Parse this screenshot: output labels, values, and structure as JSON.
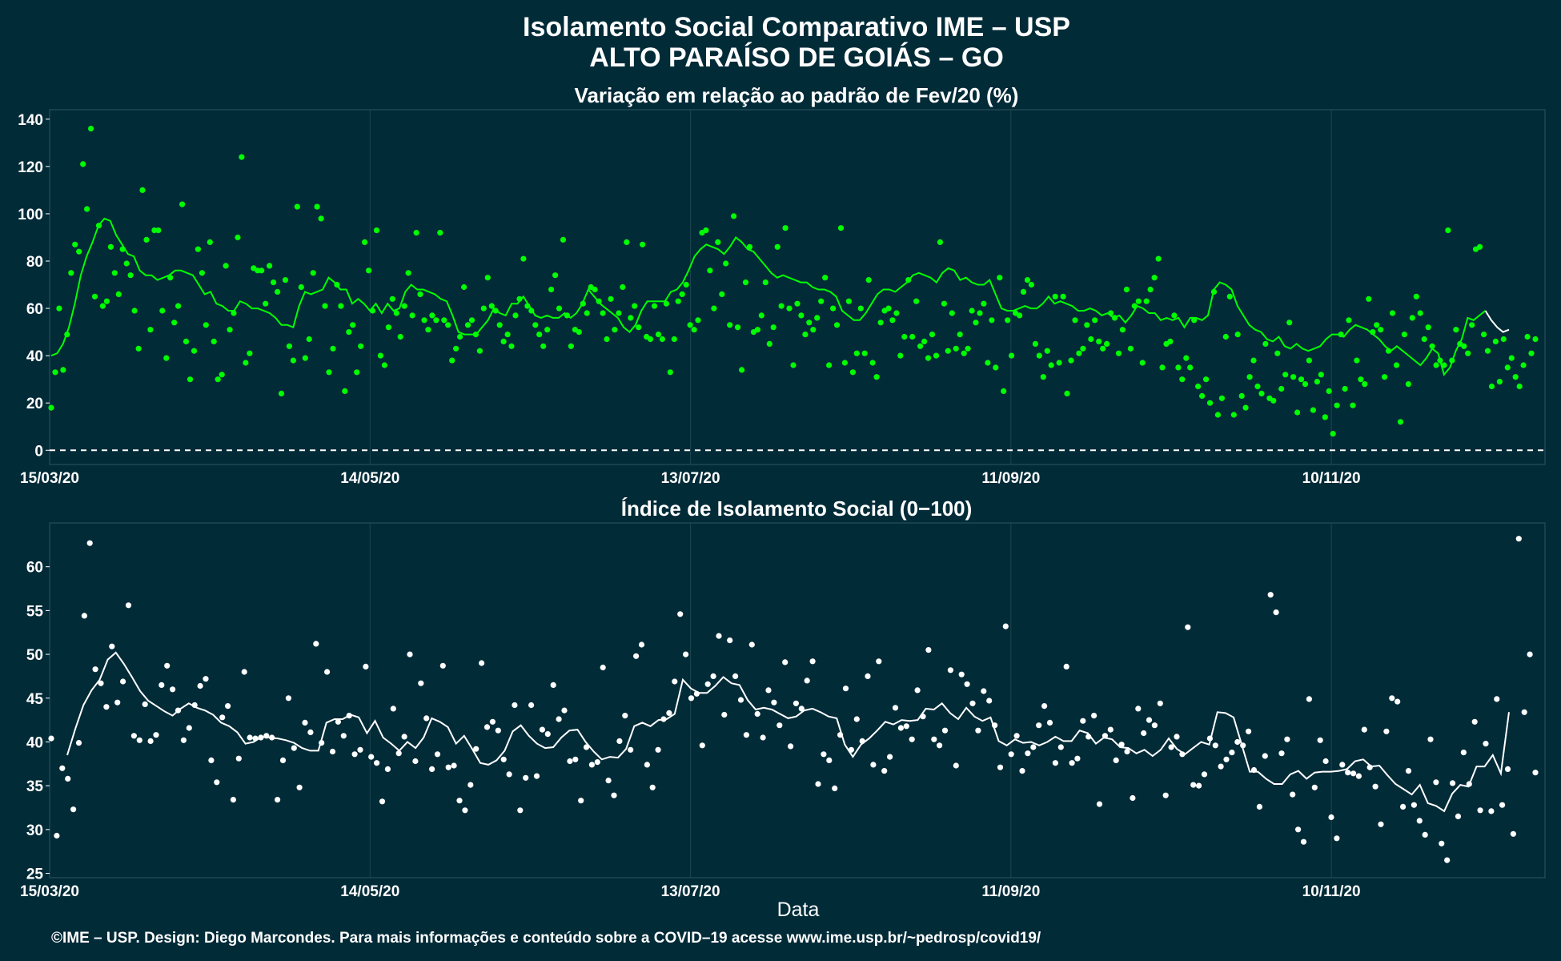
{
  "title": "Isolamento Social Comparativo IME – USP",
  "subtitle": "ALTO PARAÍSO DE GOIÁS – GO",
  "xlabel": "Data",
  "caption": "©IME – USP. Design: Diego Marcondes. Para mais informações e conteúdo sobre a COVID–19 acesse www.ime.usp.br/~pedrosp/covid19/",
  "colors": {
    "background": "#022b38",
    "top_series": "#00ff00",
    "bottom_series": "#ffffff",
    "grid": "#1d4550"
  },
  "chart_data": [
    {
      "type": "scatter",
      "title": "Variação em relação ao padrão de Fev/20 (%)",
      "x_start": "15/03/20",
      "x_ticks": [
        "15/03/20",
        "14/05/20",
        "13/07/20",
        "11/09/20",
        "10/11/20"
      ],
      "y_ticks": [
        0,
        20,
        40,
        60,
        80,
        100,
        120,
        140
      ],
      "ylim": [
        -6,
        144
      ],
      "reference_line": 0,
      "grid": true,
      "series": [
        {
          "kind": "points",
          "values": [
            18,
            33,
            60,
            34,
            49,
            75,
            87,
            84,
            121,
            102,
            136,
            65,
            95,
            61,
            63,
            86,
            75,
            66,
            85,
            79,
            74,
            59,
            43,
            110,
            89,
            51,
            93,
            93,
            59,
            39,
            73,
            54,
            61,
            104,
            46,
            30,
            42,
            85,
            75,
            53,
            88,
            46,
            30,
            32,
            78,
            51,
            58,
            90,
            124,
            37,
            41,
            77,
            76,
            76,
            62,
            78,
            71,
            67,
            24,
            72,
            44,
            38,
            103,
            69,
            39,
            47,
            75,
            103,
            98,
            61,
            33,
            43,
            70,
            61,
            25,
            50,
            53,
            33,
            44,
            88,
            76,
            59,
            93,
            40,
            36,
            52,
            64,
            58,
            48,
            61,
            75,
            57,
            92,
            66,
            55,
            51,
            57,
            55,
            92,
            55,
            53,
            38,
            43,
            48,
            69,
            53,
            55,
            49,
            42,
            60,
            73,
            61,
            59,
            53,
            46,
            49,
            44,
            57,
            64,
            81,
            61,
            59,
            53,
            49,
            44,
            51,
            68,
            74,
            60,
            89,
            57,
            44,
            51,
            50,
            62,
            58,
            69,
            68,
            63,
            58,
            47,
            64,
            51,
            58,
            69,
            88,
            56,
            61,
            52,
            87,
            48,
            47,
            61,
            49,
            47,
            62,
            33,
            47,
            63,
            66,
            70,
            53,
            51,
            55,
            92,
            93,
            76,
            60,
            88,
            66,
            79,
            53,
            99,
            52,
            34,
            71,
            86,
            50,
            51,
            57,
            71,
            45,
            52,
            86,
            61,
            94,
            60,
            36,
            62,
            57,
            49,
            54,
            51,
            56,
            63,
            73,
            36,
            60,
            53,
            94,
            37,
            63,
            33,
            41,
            60,
            41,
            72,
            37,
            31,
            54,
            59,
            60,
            55,
            58,
            40,
            48,
            72,
            48,
            63,
            44,
            46,
            39,
            49,
            40,
            88,
            62,
            42,
            58,
            43,
            49,
            41,
            43,
            59,
            54,
            58,
            62,
            37,
            55,
            35,
            73,
            25,
            55,
            40,
            58,
            57,
            67,
            72,
            70,
            45,
            40,
            31,
            42,
            36,
            65,
            37,
            65,
            24,
            38,
            55,
            41,
            43,
            53,
            47,
            55,
            46,
            43,
            45,
            58,
            56,
            41,
            51,
            68,
            43,
            61,
            63,
            37,
            63,
            68,
            73,
            81,
            35,
            45,
            46,
            57,
            35,
            30,
            39,
            35,
            55,
            27,
            23,
            30,
            20,
            67,
            15,
            22,
            48,
            65,
            15,
            49,
            23,
            18,
            31,
            38,
            27,
            24,
            45,
            22,
            21,
            41,
            26,
            32,
            54,
            31,
            16,
            30,
            28,
            38,
            17,
            29,
            32,
            14,
            25,
            7,
            19,
            49,
            26,
            55,
            19,
            38,
            30,
            28,
            64,
            50,
            53,
            51,
            31,
            42,
            58,
            36,
            12,
            49,
            28,
            56,
            65,
            58,
            47,
            52,
            44,
            36,
            38,
            36,
            93,
            38,
            51,
            45,
            44,
            41,
            53,
            85,
            86,
            49,
            42,
            27,
            46,
            29,
            47,
            35,
            39,
            31,
            27,
            36,
            48,
            41,
            47
          ]
        },
        {
          "kind": "moving_average",
          "values": [
            40,
            41,
            45,
            52,
            62,
            74,
            82,
            88,
            95,
            98,
            97,
            91,
            87,
            83,
            82,
            76,
            74,
            74,
            72,
            73,
            74,
            76,
            76,
            75,
            74,
            70,
            66,
            67,
            62,
            61,
            59,
            59,
            63,
            62,
            60,
            60,
            59,
            58,
            56,
            53,
            53,
            52,
            61,
            67,
            66,
            67,
            68,
            73,
            71,
            68,
            68,
            62,
            64,
            62,
            59,
            62,
            58,
            62,
            59,
            60,
            67,
            70,
            68,
            68,
            67,
            66,
            64,
            63,
            57,
            50,
            49,
            49,
            49,
            52,
            55,
            60,
            58,
            57,
            62,
            62,
            65,
            61,
            57,
            56,
            57,
            56,
            56,
            58,
            56,
            58,
            62,
            68,
            65,
            62,
            60,
            58,
            56,
            52,
            50,
            53,
            59,
            63,
            63,
            63,
            63,
            67,
            68,
            71,
            76,
            82,
            85,
            87,
            86,
            85,
            83,
            86,
            90,
            88,
            85,
            84,
            81,
            78,
            75,
            73,
            74,
            73,
            72,
            71,
            71,
            69,
            68,
            68,
            67,
            65,
            59,
            57,
            55,
            55,
            58,
            62,
            66,
            68,
            68,
            67,
            69,
            71,
            74,
            75,
            74,
            73,
            71,
            75,
            77,
            76,
            72,
            73,
            71,
            70,
            70,
            72,
            66,
            60,
            59,
            59,
            60,
            61,
            60,
            60,
            62,
            65,
            62,
            63,
            62,
            61,
            59,
            59,
            60,
            59,
            57,
            58,
            56,
            57,
            54,
            57,
            61,
            60,
            58,
            58,
            55,
            56,
            55,
            56,
            52,
            56,
            56,
            55,
            57,
            68,
            71,
            70,
            68,
            61,
            57,
            53,
            51,
            50,
            47,
            46,
            48,
            44,
            43,
            45,
            43,
            42,
            43,
            44,
            47,
            49,
            49,
            48,
            51,
            53,
            52,
            51,
            49,
            47,
            44,
            42,
            44,
            42,
            40,
            38,
            36,
            39,
            43,
            41,
            32,
            35,
            42,
            47,
            56,
            55,
            57,
            59,
            55,
            52,
            50,
            51
          ]
        }
      ]
    },
    {
      "type": "scatter",
      "title": "Índice de Isolamento Social (0−100)",
      "x_start": "15/03/20",
      "x_ticks": [
        "15/03/20",
        "14/05/20",
        "13/07/20",
        "11/09/20",
        "10/11/20"
      ],
      "y_ticks": [
        25,
        30,
        35,
        40,
        45,
        50,
        55,
        60
      ],
      "ylim": [
        24.5,
        65
      ],
      "grid": true,
      "series": [
        {
          "kind": "points",
          "values": [
            40.4,
            29.3,
            37.0,
            35.8,
            32.3,
            39.9,
            54.4,
            62.7,
            48.3,
            46.7,
            44.0,
            50.9,
            44.5,
            46.9,
            55.6,
            40.7,
            40.2,
            44.3,
            40.1,
            40.8,
            46.5,
            48.7,
            46.0,
            43.6,
            40.2,
            41.6,
            44.2,
            46.4,
            47.2,
            37.9,
            35.4,
            42.8,
            44.1,
            33.4,
            38.1,
            48.0,
            40.5,
            40.4,
            40.5,
            40.7,
            40.5,
            33.4,
            37.9,
            45.0,
            39.3,
            34.8,
            42.2,
            41.1,
            51.2,
            39.9,
            48.0,
            38.9,
            42.3,
            40.7,
            43.0,
            38.6,
            39.1,
            48.6,
            38.3,
            37.6,
            33.2,
            36.9,
            43.8,
            38.7,
            40.6,
            50.0,
            37.8,
            46.7,
            42.7,
            36.9,
            38.6,
            48.7,
            37.1,
            37.3,
            33.3,
            32.2,
            35.1,
            39.2,
            49.0,
            41.7,
            42.3,
            41.3,
            38.0,
            36.3,
            44.2,
            32.2,
            35.9,
            44.2,
            36.1,
            41.4,
            40.9,
            46.5,
            42.6,
            43.6,
            37.8,
            38.0,
            33.3,
            39.4,
            37.4,
            37.7,
            48.5,
            35.6,
            33.9,
            40.1,
            43.0,
            39.1,
            49.8,
            51.1,
            37.4,
            34.8,
            39.1,
            42.6,
            43.3,
            46.9,
            54.6,
            50.0,
            45.0,
            45.5,
            39.6,
            46.6,
            47.5,
            52.1,
            43.1,
            51.6,
            47.5,
            44.8,
            40.8,
            51.1,
            43.2,
            40.5,
            45.9,
            44.5,
            41.9,
            49.1,
            39.5,
            44.4,
            43.8,
            47.0,
            49.2,
            35.2,
            38.6,
            37.9,
            34.7,
            40.8,
            46.1,
            39.1,
            42.6,
            40.1,
            47.5,
            37.4,
            49.2,
            36.7,
            38.3,
            43.9,
            41.6,
            41.8,
            40.3,
            45.9,
            42.9,
            50.5,
            40.3,
            39.6,
            41.3,
            48.2,
            37.3,
            47.7,
            46.6,
            44.4,
            41.3,
            45.8,
            44.7,
            41.9,
            37.1,
            53.2,
            38.6,
            40.7,
            36.7,
            38.7,
            39.4,
            41.9,
            44.1,
            42.2,
            37.6,
            39.4,
            48.6,
            37.6,
            38.1,
            42.4,
            40.6,
            43.0,
            32.9,
            40.7,
            41.4,
            37.9,
            39.7,
            38.9,
            33.6,
            43.8,
            41.0,
            42.5,
            41.9,
            44.4,
            33.9,
            39.4,
            40.6,
            38.6,
            53.1,
            35.1,
            35.0,
            36.3,
            40.4,
            39.6,
            37.2,
            38.0,
            38.8,
            40.0,
            39.6,
            41.2,
            36.8,
            32.6,
            38.4,
            56.8,
            54.8,
            38.7,
            40.3,
            34.0,
            30.0,
            28.6,
            44.9,
            34.8,
            40.2,
            37.8,
            31.4,
            29.0,
            37.4,
            36.5,
            36.4,
            36.1,
            41.4,
            37.1,
            34.9,
            30.6,
            41.2,
            45.0,
            44.6,
            32.6,
            36.7,
            32.8,
            31.0,
            29.4,
            40.3,
            35.4,
            28.4,
            26.5,
            35.3,
            31.5,
            38.8,
            35.2,
            42.3,
            32.2,
            39.8,
            32.1,
            44.9,
            32.8,
            36.9,
            29.5,
            63.2,
            43.4,
            50.0,
            36.5
          ]
        },
        {
          "kind": "moving_average",
          "values": [
            38.5,
            41.5,
            44.2,
            45.9,
            47.1,
            49.4,
            50.2,
            48.9,
            47.4,
            45.8,
            44.7,
            44.1,
            43.5,
            43.0,
            43.8,
            44.4,
            43.9,
            43.6,
            43.1,
            42.2,
            41.8,
            41.1,
            39.8,
            40.0,
            40.6,
            40.5,
            40.4,
            40.2,
            39.9,
            39.3,
            39.0,
            39.0,
            42.2,
            42.6,
            42.6,
            43.1,
            42.8,
            41.0,
            42.4,
            40.5,
            39.8,
            39.0,
            40.0,
            39.3,
            40.5,
            42.7,
            42.3,
            41.7,
            39.8,
            40.7,
            39.2,
            37.6,
            37.4,
            37.9,
            39.0,
            41.2,
            41.9,
            40.7,
            39.8,
            39.3,
            39.4,
            40.5,
            41.3,
            41.4,
            40.0,
            38.9,
            38.0,
            38.3,
            38.2,
            39.2,
            41.8,
            42.2,
            41.8,
            42.5,
            42.6,
            43.2,
            47.1,
            46.1,
            45.6,
            45.6,
            46.4,
            47.4,
            46.7,
            46.5,
            44.8,
            43.7,
            43.9,
            43.7,
            43.2,
            42.7,
            42.9,
            43.6,
            43.8,
            43.4,
            42.9,
            42.7,
            39.7,
            38.3,
            39.7,
            40.4,
            41.3,
            42.3,
            42.0,
            42.5,
            42.4,
            42.5,
            43.8,
            43.7,
            44.4,
            43.3,
            42.6,
            43.9,
            42.9,
            42.4,
            42.8,
            40.1,
            39.6,
            40.3,
            39.9,
            40.0,
            39.6,
            40.0,
            40.6,
            40.1,
            40.1,
            41.3,
            41.0,
            39.8,
            40.5,
            40.3,
            39.4,
            39.3,
            38.7,
            39.1,
            38.4,
            39.1,
            40.4,
            39.2,
            38.6,
            39.3,
            40.0,
            39.7,
            43.4,
            43.3,
            42.8,
            39.7,
            36.6,
            36.6,
            35.8,
            35.2,
            35.2,
            36.3,
            36.7,
            35.8,
            36.5,
            36.6,
            36.6,
            36.7,
            36.9,
            37.8,
            38.0,
            37.2,
            37.3,
            36.2,
            35.2,
            34.6,
            34.0,
            35.1,
            33.0,
            32.7,
            32.1,
            34.1,
            35.1,
            34.9,
            37.2,
            37.2,
            38.5,
            36.4,
            43.4
          ]
        }
      ]
    }
  ]
}
